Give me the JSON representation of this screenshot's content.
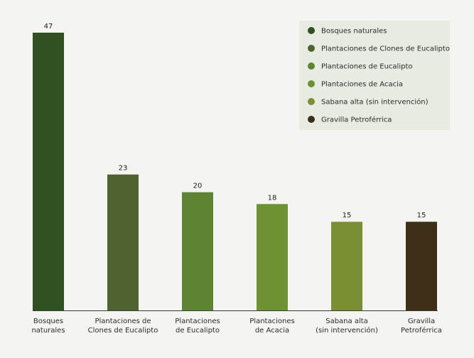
{
  "chart_data": {
    "type": "bar",
    "title": "",
    "xlabel": "",
    "ylabel": "",
    "ylim": [
      0,
      47
    ],
    "grid": false,
    "legend_position": "top-right",
    "categories": [
      "Bosques naturales",
      "Plantaciones de Clones de Eucalipto",
      "Plantaciones de Eucalipto",
      "Plantaciones de Acacia",
      "Sabana alta (sin intervención)",
      "Gravilla Petroférrica"
    ],
    "tick_labels": [
      [
        "Bosques",
        "naturales"
      ],
      [
        "Plantaciones de",
        "Clones de Eucalipto"
      ],
      [
        "Plantaciones",
        "de Eucalipto"
      ],
      [
        "Plantaciones",
        "de Acacia"
      ],
      [
        "Sabana alta",
        "(sin intervención)"
      ],
      [
        "Gravilla",
        "Petroférrica"
      ]
    ],
    "values": [
      47,
      23,
      20,
      18,
      15,
      15
    ],
    "data_labels": [
      "47",
      "23",
      "20",
      "18",
      "15",
      "15"
    ],
    "colors": [
      "#2f5122",
      "#4f6330",
      "#5c8432",
      "#6d9133",
      "#7a8e34",
      "#3e2f19"
    ],
    "legend": [
      {
        "label": "Bosques naturales",
        "color": "#2f5122"
      },
      {
        "label": "Plantaciones de Clones de Eucalipto",
        "color": "#4f6330"
      },
      {
        "label": "Plantaciones de Eucalipto",
        "color": "#5c8432"
      },
      {
        "label": "Plantaciones de Acacia",
        "color": "#6d9133"
      },
      {
        "label": "Sabana alta (sin intervención)",
        "color": "#7a8e34"
      },
      {
        "label": "Gravilla Petroférrica",
        "color": "#3e2f19"
      }
    ],
    "legend_bg": "#e7ebe2",
    "axis_color": "#3a3a3a"
  }
}
